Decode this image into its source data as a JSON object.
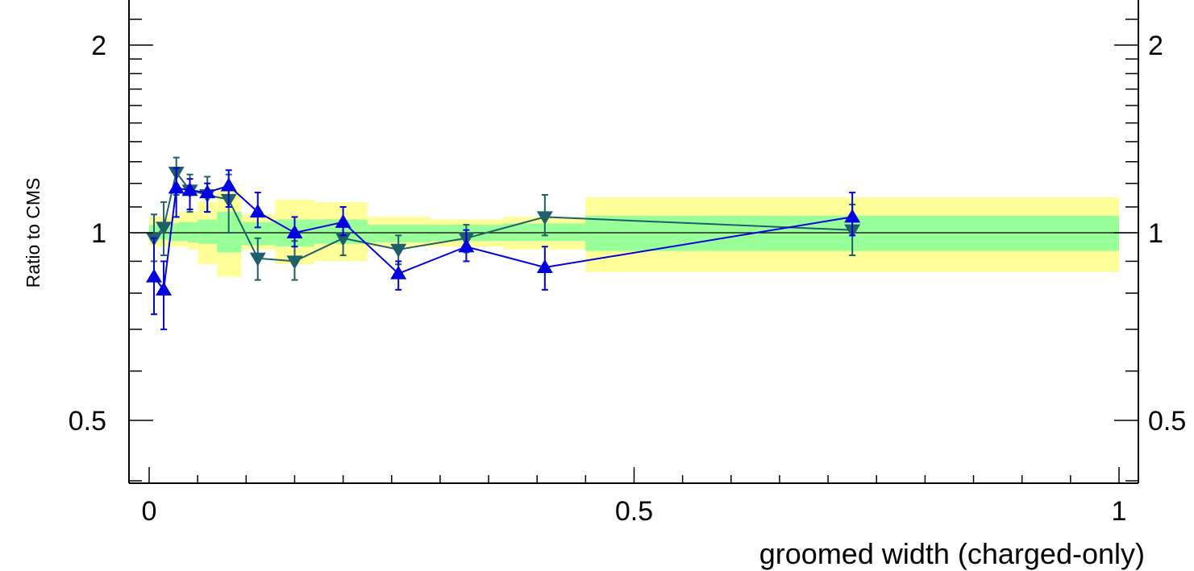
{
  "chart_data": {
    "type": "line",
    "xlabel": "groomed width (charged-only)",
    "ylabel": "Ratio to CMS",
    "xlim": [
      -0.02,
      1.02
    ],
    "ylim": [
      0.4,
      2.4
    ],
    "y_scale": "log",
    "x_ticks": [
      {
        "value": 0,
        "label": "0"
      },
      {
        "value": 0.5,
        "label": "0.5"
      },
      {
        "value": 1,
        "label": "1"
      }
    ],
    "y_ticks_left": [
      {
        "value": 0.5,
        "label": "0.5"
      },
      {
        "value": 1,
        "label": "1"
      },
      {
        "value": 2,
        "label": "2"
      }
    ],
    "y_ticks_right": [
      {
        "value": 0.5,
        "label": "0.5"
      },
      {
        "value": 1,
        "label": "1"
      },
      {
        "value": 2,
        "label": "2"
      }
    ],
    "reference_line": 1,
    "colors": {
      "stat_band": "#99ff99",
      "total_band": "#ffff99",
      "series_teal": "#1f5f6a",
      "series_blue": "#0000e0",
      "axis": "#000000"
    },
    "bands": [
      {
        "x0": 0.0,
        "x1": 0.01,
        "stat": [
          0.97,
          1.03
        ],
        "total": [
          0.95,
          1.06
        ]
      },
      {
        "x0": 0.01,
        "x1": 0.02,
        "stat": [
          0.975,
          1.03
        ],
        "total": [
          0.95,
          1.06
        ]
      },
      {
        "x0": 0.02,
        "x1": 0.03,
        "stat": [
          0.97,
          1.035
        ],
        "total": [
          0.95,
          1.07
        ]
      },
      {
        "x0": 0.03,
        "x1": 0.04,
        "stat": [
          0.97,
          1.04
        ],
        "total": [
          0.95,
          1.08
        ]
      },
      {
        "x0": 0.04,
        "x1": 0.05,
        "stat": [
          0.965,
          1.04
        ],
        "total": [
          0.94,
          1.08
        ]
      },
      {
        "x0": 0.05,
        "x1": 0.07,
        "stat": [
          0.96,
          1.05
        ],
        "total": [
          0.89,
          1.12
        ]
      },
      {
        "x0": 0.07,
        "x1": 0.095,
        "stat": [
          0.93,
          1.08
        ],
        "total": [
          0.85,
          1.17
        ]
      },
      {
        "x0": 0.095,
        "x1": 0.13,
        "stat": [
          0.955,
          1.04
        ],
        "total": [
          0.94,
          1.07
        ]
      },
      {
        "x0": 0.13,
        "x1": 0.17,
        "stat": [
          0.95,
          1.05
        ],
        "total": [
          0.89,
          1.13
        ]
      },
      {
        "x0": 0.17,
        "x1": 0.225,
        "stat": [
          0.96,
          1.05
        ],
        "total": [
          0.9,
          1.12
        ]
      },
      {
        "x0": 0.225,
        "x1": 0.29,
        "stat": [
          0.965,
          1.03
        ],
        "total": [
          0.95,
          1.06
        ]
      },
      {
        "x0": 0.29,
        "x1": 0.365,
        "stat": [
          0.97,
          1.03
        ],
        "total": [
          0.95,
          1.05
        ]
      },
      {
        "x0": 0.365,
        "x1": 0.45,
        "stat": [
          0.97,
          1.035
        ],
        "total": [
          0.94,
          1.06
        ]
      },
      {
        "x0": 0.45,
        "x1": 1.0,
        "stat": [
          0.935,
          1.065
        ],
        "total": [
          0.865,
          1.14
        ]
      }
    ],
    "series": [
      {
        "marker": "triangle-down",
        "color": "#1f5f6a",
        "points": [
          {
            "x": 0.005,
            "y": 0.98,
            "lo": 0.9,
            "hi": 1.07
          },
          {
            "x": 0.015,
            "y": 1.02,
            "lo": 0.92,
            "hi": 1.12
          },
          {
            "x": 0.028,
            "y": 1.25,
            "lo": 1.15,
            "hi": 1.32
          },
          {
            "x": 0.042,
            "y": 1.17,
            "lo": 1.08,
            "hi": 1.24
          },
          {
            "x": 0.06,
            "y": 1.15,
            "lo": 1.08,
            "hi": 1.23
          },
          {
            "x": 0.082,
            "y": 1.13,
            "lo": 1.0,
            "hi": 1.24
          },
          {
            "x": 0.112,
            "y": 0.91,
            "lo": 0.84,
            "hi": 0.98
          },
          {
            "x": 0.15,
            "y": 0.9,
            "lo": 0.84,
            "hi": 0.97
          },
          {
            "x": 0.2,
            "y": 0.98,
            "lo": 0.92,
            "hi": 1.03
          },
          {
            "x": 0.257,
            "y": 0.94,
            "lo": 0.89,
            "hi": 0.99
          },
          {
            "x": 0.327,
            "y": 0.98,
            "lo": 0.93,
            "hi": 1.03
          },
          {
            "x": 0.408,
            "y": 1.06,
            "lo": 0.99,
            "hi": 1.15
          },
          {
            "x": 0.725,
            "y": 1.01,
            "lo": 0.92,
            "hi": 1.11
          }
        ]
      },
      {
        "marker": "triangle-up",
        "color": "#0000e0",
        "points": [
          {
            "x": 0.005,
            "y": 0.85,
            "lo": 0.74,
            "hi": 0.98
          },
          {
            "x": 0.015,
            "y": 0.81,
            "lo": 0.7,
            "hi": 0.9
          },
          {
            "x": 0.028,
            "y": 1.18,
            "lo": 1.06,
            "hi": 1.27
          },
          {
            "x": 0.042,
            "y": 1.17,
            "lo": 1.09,
            "hi": 1.22
          },
          {
            "x": 0.06,
            "y": 1.16,
            "lo": 1.08,
            "hi": 1.2
          },
          {
            "x": 0.082,
            "y": 1.19,
            "lo": 1.1,
            "hi": 1.26
          },
          {
            "x": 0.112,
            "y": 1.08,
            "lo": 1.02,
            "hi": 1.16
          },
          {
            "x": 0.15,
            "y": 1.0,
            "lo": 0.95,
            "hi": 1.06
          },
          {
            "x": 0.2,
            "y": 1.04,
            "lo": 0.99,
            "hi": 1.1
          },
          {
            "x": 0.257,
            "y": 0.86,
            "lo": 0.81,
            "hi": 0.9
          },
          {
            "x": 0.327,
            "y": 0.95,
            "lo": 0.9,
            "hi": 1.01
          },
          {
            "x": 0.408,
            "y": 0.88,
            "lo": 0.81,
            "hi": 0.95
          },
          {
            "x": 0.725,
            "y": 1.06,
            "lo": 0.99,
            "hi": 1.16
          }
        ]
      }
    ]
  }
}
